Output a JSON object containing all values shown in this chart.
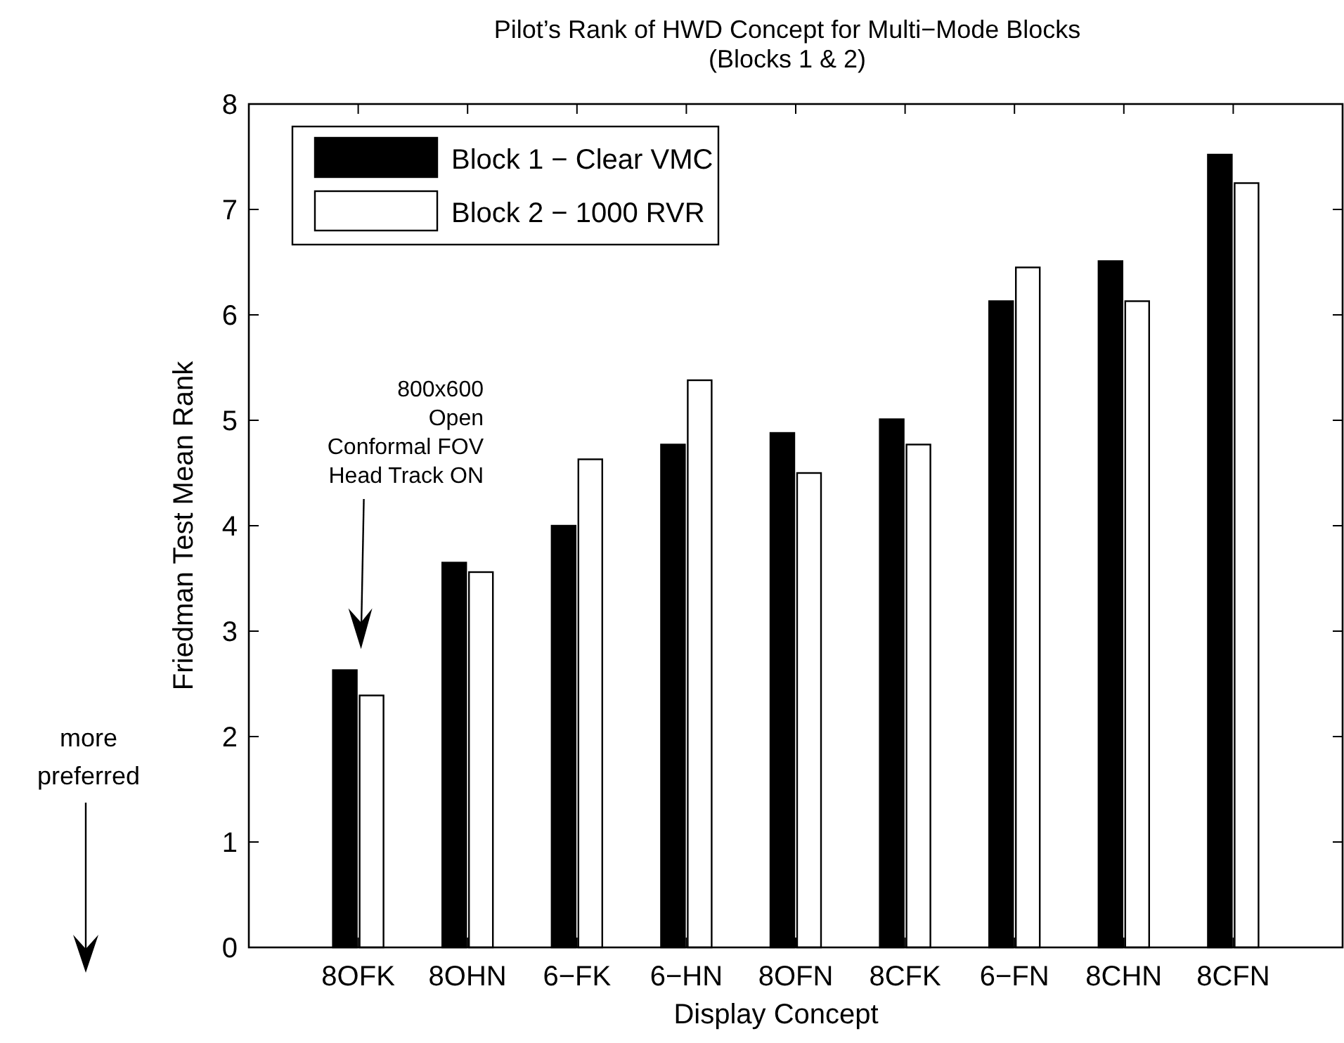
{
  "chart_data": {
    "type": "bar",
    "title": "Pilot’s Rank of HWD Concept for Multi−Mode Blocks",
    "subtitle": "(Blocks 1 & 2)",
    "xlabel": "Display Concept",
    "ylabel": "Friedman Test Mean Rank",
    "categories": [
      "8OFK",
      "8OHN",
      "6−FK",
      "6−HN",
      "8OFN",
      "8CFK",
      "6−FN",
      "8CHN",
      "8CFN"
    ],
    "series": [
      {
        "name": "Block 1 − Clear VMC",
        "color": "#000000",
        "values": [
          2.63,
          3.65,
          4.0,
          4.77,
          4.88,
          5.01,
          6.13,
          6.51,
          7.52
        ]
      },
      {
        "name": "Block 2 − 1000 RVR",
        "color": "#ffffff",
        "values": [
          2.39,
          3.56,
          4.63,
          5.38,
          4.5,
          4.77,
          6.45,
          6.13,
          7.25
        ]
      }
    ],
    "ylim": [
      0,
      8
    ],
    "yticks": [
      0,
      1,
      2,
      3,
      4,
      5,
      6,
      7,
      8
    ],
    "grid": false,
    "legend": "top left",
    "annotations": [
      "800x600\nOpen\nConformal FOV\nHead Track ON",
      "more\npreferred"
    ]
  }
}
